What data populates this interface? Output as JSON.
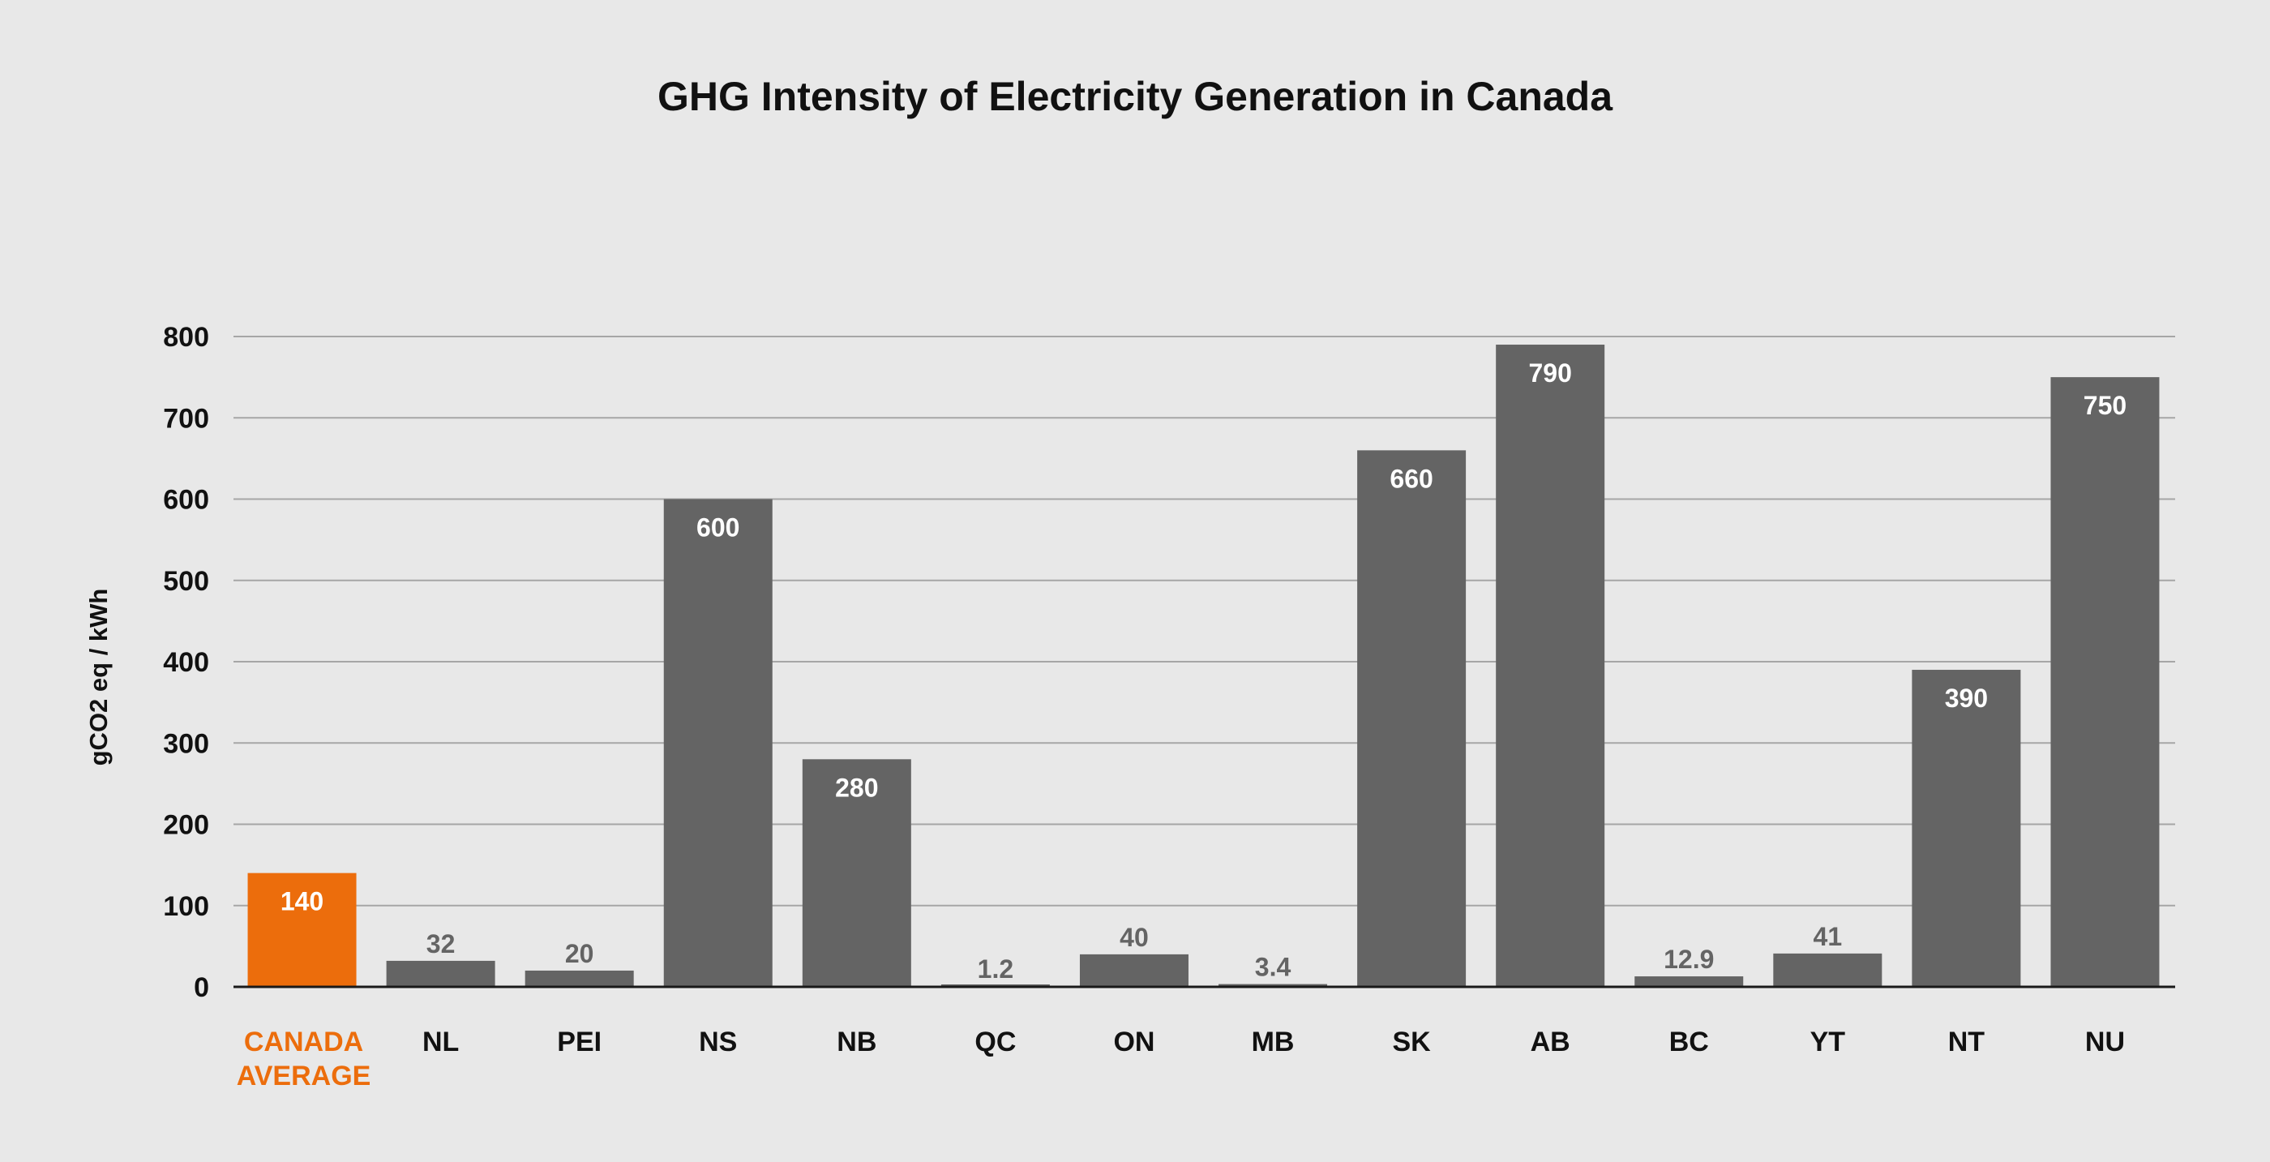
{
  "chart_data": {
    "type": "bar",
    "title": "GHG Intensity of Electricity Generation in Canada",
    "xlabel": "",
    "ylabel": "gCO2 eq / kWh",
    "ylim": [
      0,
      800
    ],
    "yticks": [
      0,
      100,
      200,
      300,
      400,
      500,
      600,
      700,
      800
    ],
    "grid": true,
    "legend": "none",
    "categories": [
      [
        "CANADA",
        "AVERAGE"
      ],
      [
        "NL"
      ],
      [
        "PEI"
      ],
      [
        "NS"
      ],
      [
        "NB"
      ],
      [
        "QC"
      ],
      [
        "ON"
      ],
      [
        "MB"
      ],
      [
        "SK"
      ],
      [
        "AB"
      ],
      [
        "BC"
      ],
      [
        "YT"
      ],
      [
        "NT"
      ],
      [
        "NU"
      ]
    ],
    "values": [
      140,
      32,
      20,
      600,
      280,
      1.2,
      40,
      3.4,
      660,
      790,
      12.9,
      41,
      390,
      750
    ],
    "value_labels": [
      "140",
      "32",
      "20",
      "600",
      "280",
      "1.2",
      "40",
      "3.4",
      "660",
      "790",
      "12.9",
      "41",
      "390",
      "750"
    ],
    "highlight_index": 0,
    "colors": {
      "background": "#e8e8e8",
      "bar": "#646464",
      "highlight": "#ec6d0c",
      "grid": "#a6a6a6",
      "axis": "#1a1a1a",
      "text": "#111111",
      "label_inside": "#ffffff",
      "label_outside": "#646464"
    }
  }
}
